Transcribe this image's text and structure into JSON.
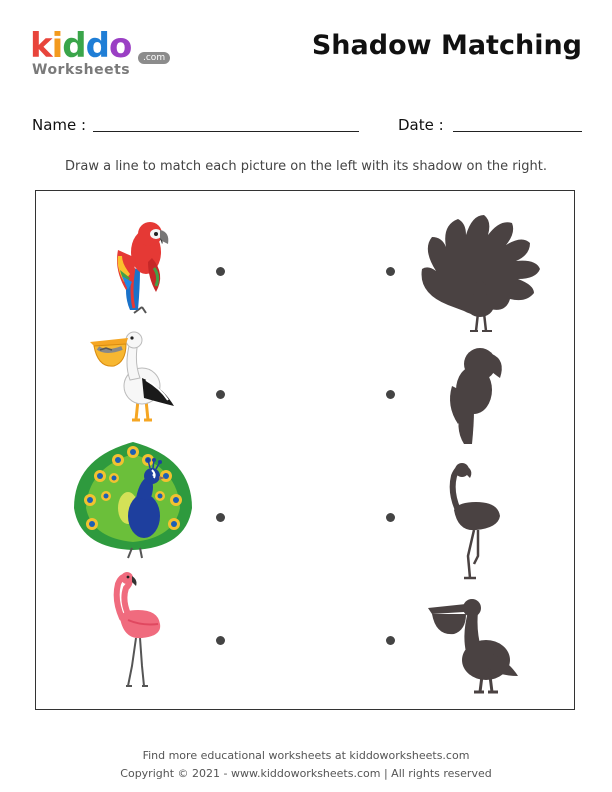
{
  "logo": {
    "brand": "kiddo",
    "sub": "Worksheets",
    "tld": ".com",
    "letter_colors": [
      "#e8443b",
      "#f39a1e",
      "#3aa54a",
      "#1f7ed6",
      "#9a3fc4"
    ]
  },
  "header": {
    "title": "Shadow Matching"
  },
  "form": {
    "name_label": "Name :",
    "date_label": "Date :"
  },
  "instruction": "Draw a line to match each picture on the left with its shadow on the right.",
  "left_pictures": [
    {
      "icon": "parrot-icon"
    },
    {
      "icon": "pelican-icon"
    },
    {
      "icon": "peacock-icon"
    },
    {
      "icon": "flamingo-icon"
    }
  ],
  "right_shadows": [
    {
      "icon": "peacock-shadow-icon"
    },
    {
      "icon": "parrot-shadow-icon"
    },
    {
      "icon": "flamingo-shadow-icon"
    },
    {
      "icon": "pelican-shadow-icon"
    }
  ],
  "footer": {
    "line1": "Find more educational worksheets at kiddoworksheets.com",
    "line2": "Copyright © 2021 - www.kiddoworksheets.com  |  All rights reserved"
  },
  "colors": {
    "shadow": "#4a4242",
    "dot": "#444444"
  }
}
